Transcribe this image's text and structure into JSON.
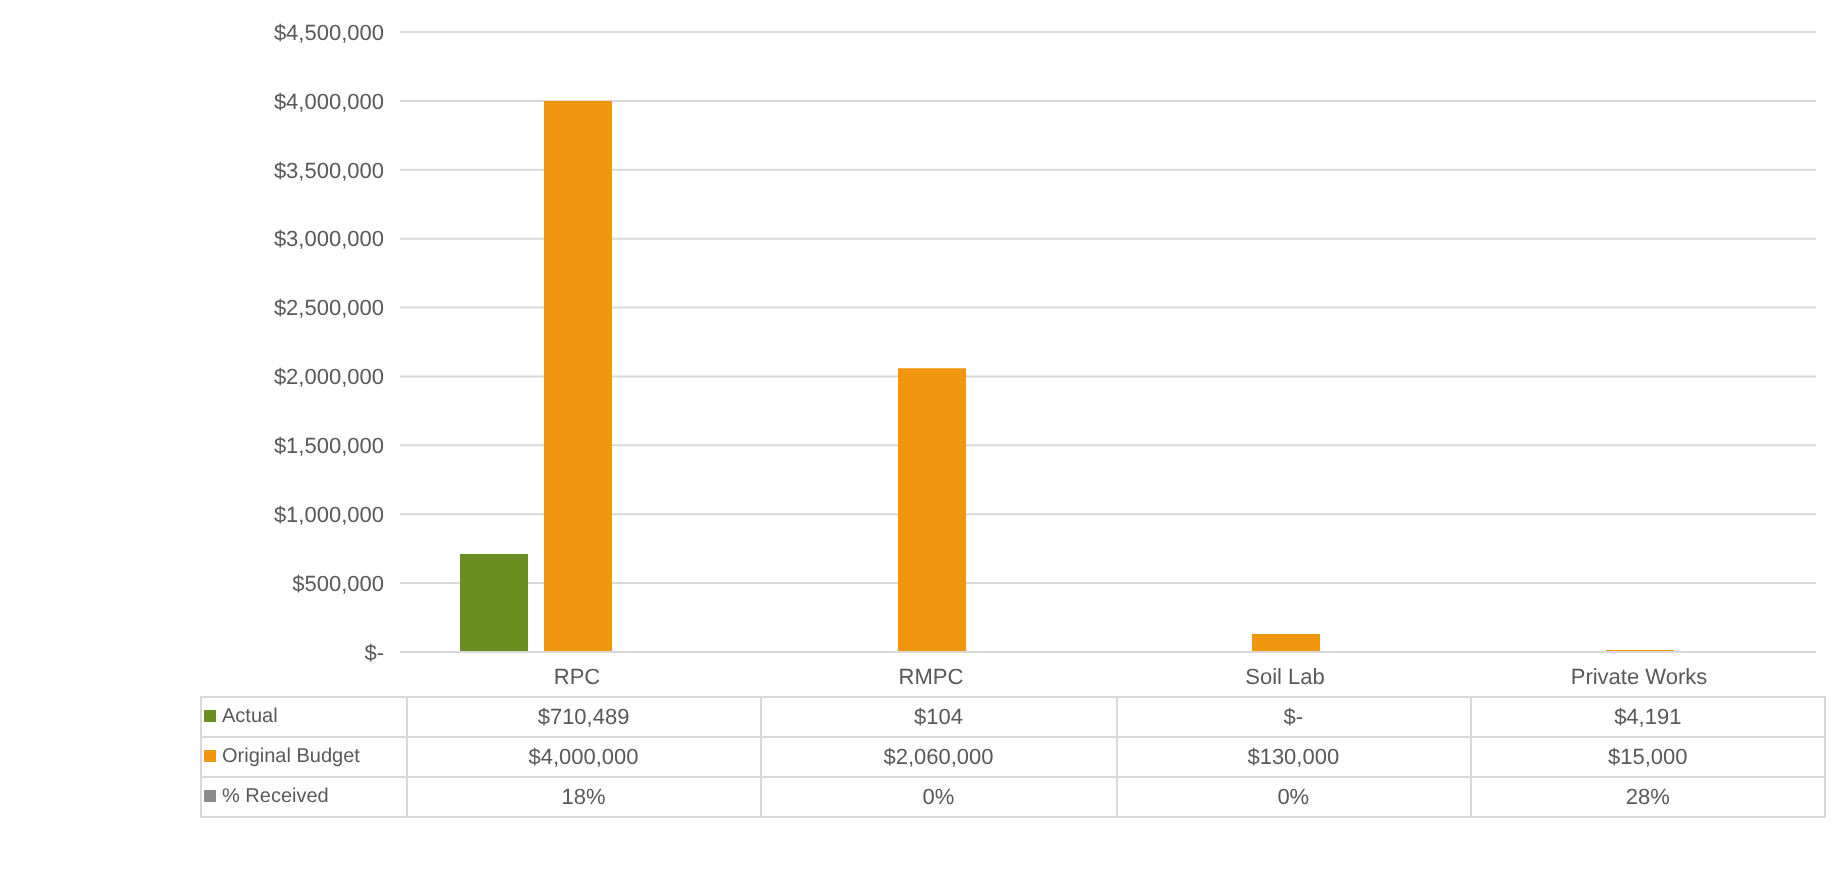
{
  "chart_data": {
    "type": "bar",
    "categories": [
      "RPC",
      "RMPC",
      "Soil Lab",
      "Private Works"
    ],
    "series": [
      {
        "name": "Actual",
        "color": "#6b8e23",
        "values": [
          710489,
          104,
          0,
          4191
        ],
        "value_labels": [
          "$710,489",
          "$104",
          "$-",
          "$4,191"
        ]
      },
      {
        "name": "Original Budget",
        "color": "#f0960f",
        "values": [
          4000000,
          2060000,
          130000,
          15000
        ],
        "value_labels": [
          "$4,000,000",
          "$2,060,000",
          "$130,000",
          "$15,000"
        ]
      },
      {
        "name": "% Received",
        "color": "#8c8c8c",
        "values": [
          0.18,
          0,
          0,
          0.28
        ],
        "value_labels": [
          "18%",
          "0%",
          "0%",
          "28%"
        ]
      }
    ],
    "ylim": [
      0,
      4500000
    ],
    "yticks": [
      {
        "value": 0,
        "label": "$-"
      },
      {
        "value": 500000,
        "label": "$500,000"
      },
      {
        "value": 1000000,
        "label": "$1,000,000"
      },
      {
        "value": 1500000,
        "label": "$1,500,000"
      },
      {
        "value": 2000000,
        "label": "$2,000,000"
      },
      {
        "value": 2500000,
        "label": "$2,500,000"
      },
      {
        "value": 3000000,
        "label": "$3,000,000"
      },
      {
        "value": 3500000,
        "label": "$3,500,000"
      },
      {
        "value": 4000000,
        "label": "$4,000,000"
      },
      {
        "value": 4500000,
        "label": "$4,500,000"
      }
    ],
    "grid": "y",
    "legend": "bottom"
  }
}
